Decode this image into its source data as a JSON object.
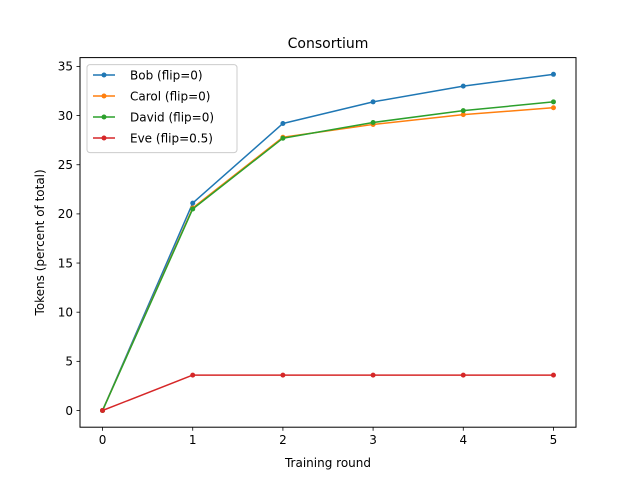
{
  "chart_data": {
    "type": "line",
    "title": "Consortium",
    "xlabel": "Training round",
    "ylabel": "Tokens (percent of total)",
    "xlim": [
      -0.25,
      5.25
    ],
    "ylim": [
      -1.7,
      35.9
    ],
    "xticks": [
      0,
      1,
      2,
      3,
      4,
      5
    ],
    "yticks": [
      0,
      5,
      10,
      15,
      20,
      25,
      30,
      35
    ],
    "grid": false,
    "legend_position": "upper left",
    "x": [
      0,
      1,
      2,
      3,
      4,
      5
    ],
    "series": [
      {
        "name": "Bob (flip=0)",
        "color": "#1f77b4",
        "values": [
          0,
          21.1,
          29.2,
          31.4,
          33.0,
          34.2
        ]
      },
      {
        "name": "Carol (flip=0)",
        "color": "#ff7f0e",
        "values": [
          0,
          20.6,
          27.8,
          29.1,
          30.1,
          30.8
        ]
      },
      {
        "name": "David (flip=0)",
        "color": "#2ca02c",
        "values": [
          0,
          20.5,
          27.7,
          29.3,
          30.5,
          31.4
        ]
      },
      {
        "name": "Eve (flip=0.5)",
        "color": "#d62728",
        "values": [
          0,
          3.6,
          3.6,
          3.6,
          3.6,
          3.6
        ]
      }
    ]
  }
}
